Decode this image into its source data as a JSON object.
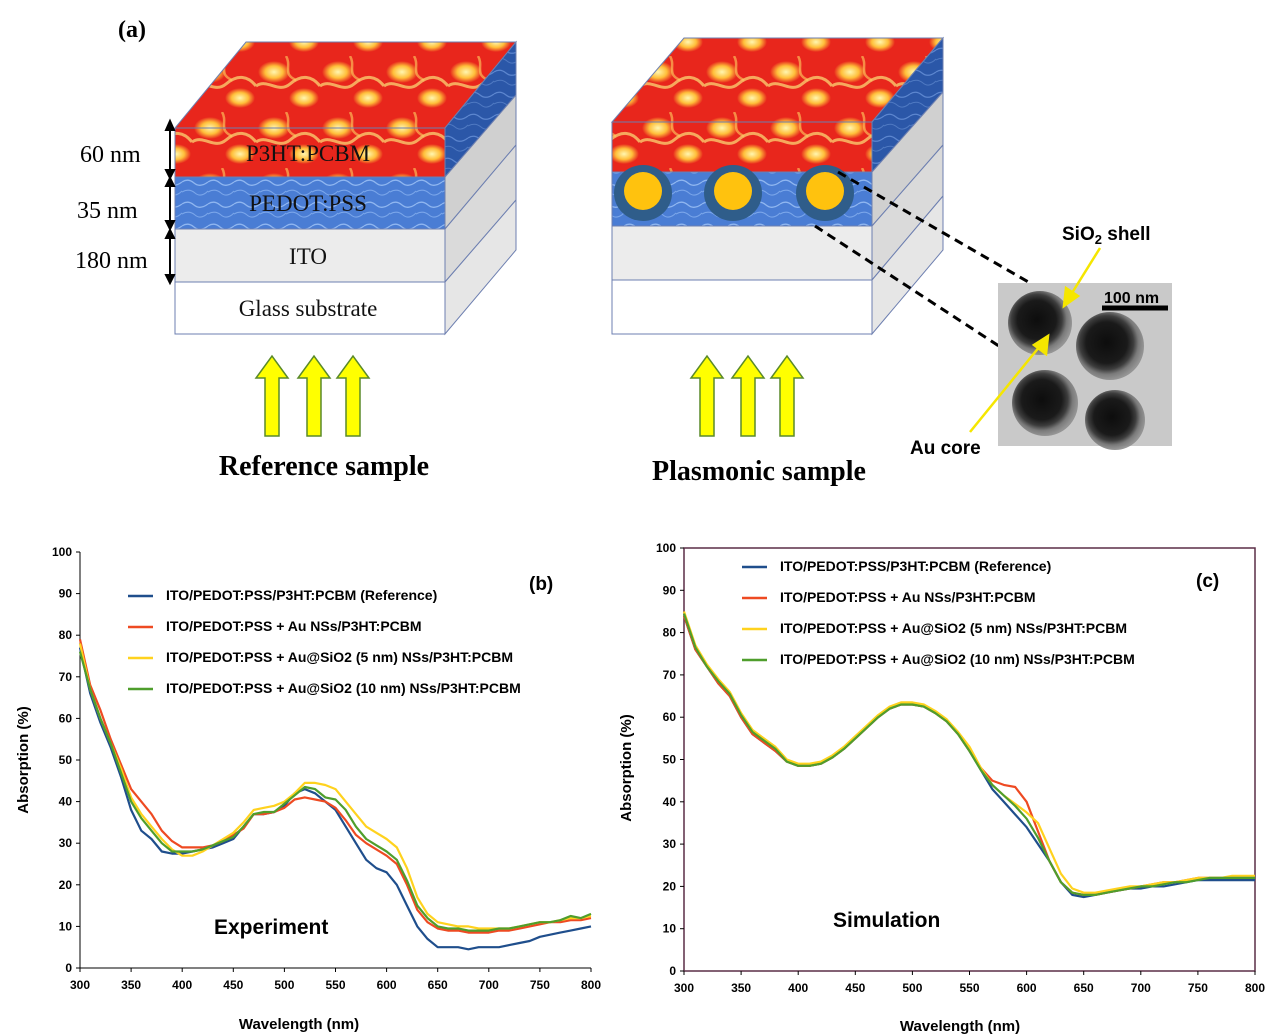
{
  "panel_a": {
    "label": "(a)",
    "dims": [
      "60 nm",
      "35 nm",
      "180 nm"
    ],
    "layers": {
      "active": "P3HT:PCBM",
      "htl": "PEDOT:PSS",
      "ito": "ITO",
      "glass": "Glass substrate"
    },
    "captions": {
      "reference": "Reference sample",
      "plasmonic": "Plasmonic sample"
    },
    "tem": {
      "scale_bar": "100 nm",
      "shell": "SiO",
      "shell_sub": "2",
      "shell_suffix": " shell",
      "core": "Au core"
    },
    "colors": {
      "flame": "#e8201a",
      "flame_light": "#ffe066",
      "pedot": "#4f7fd6",
      "ito": "#ebebeb",
      "arrow": "#ffff00",
      "arrow_edge": "#5a8a2a",
      "nanoparticle_core": "#ffc20e",
      "nanoparticle_shell": "#2f5d8a"
    }
  },
  "chart_data": [
    {
      "panel": "(b)",
      "type": "line",
      "annotation": "Experiment",
      "xlabel": "Wavelength (nm)",
      "ylabel": "Absorption (%)",
      "xlim": [
        300,
        800
      ],
      "ylim": [
        0,
        100
      ],
      "xticks": [
        "300",
        "350",
        "400",
        "450",
        "500",
        "550",
        "600",
        "650",
        "700",
        "750",
        "800"
      ],
      "yticks": [
        "0",
        "10",
        "20",
        "30",
        "40",
        "50",
        "60",
        "70",
        "80",
        "90",
        "100"
      ],
      "grid": false,
      "legend_position": "top",
      "series": [
        {
          "name": "ITO/PEDOT:PSS/P3HT:PCBM (Reference)",
          "color": "#1f4e8c",
          "x": [
            300,
            310,
            320,
            330,
            340,
            350,
            360,
            370,
            380,
            390,
            400,
            410,
            420,
            430,
            440,
            450,
            460,
            470,
            480,
            490,
            500,
            510,
            520,
            530,
            540,
            550,
            560,
            570,
            580,
            590,
            600,
            610,
            620,
            630,
            640,
            650,
            660,
            670,
            680,
            690,
            700,
            710,
            720,
            730,
            740,
            750,
            760,
            770,
            780,
            790,
            800
          ],
          "y": [
            77,
            66,
            59,
            53,
            46,
            38,
            33,
            31,
            28,
            27.5,
            27.5,
            28,
            28.5,
            29,
            30,
            31,
            34,
            37,
            37,
            37.5,
            39,
            42,
            43,
            42,
            40,
            38,
            34,
            30,
            26,
            24,
            23,
            20,
            15,
            10,
            7,
            5,
            5,
            5,
            4.5,
            5,
            5,
            5,
            5.5,
            6,
            6.5,
            7.5,
            8,
            8.5,
            9,
            9.5,
            10
          ]
        },
        {
          "name": "ITO/PEDOT:PSS + Au NSs/P3HT:PCBM",
          "color": "#ee4a22",
          "x": [
            300,
            310,
            320,
            330,
            340,
            350,
            360,
            370,
            380,
            390,
            400,
            410,
            420,
            430,
            440,
            450,
            460,
            470,
            480,
            490,
            500,
            510,
            520,
            530,
            540,
            550,
            560,
            570,
            580,
            590,
            600,
            610,
            620,
            630,
            640,
            650,
            660,
            670,
            680,
            690,
            700,
            710,
            720,
            730,
            740,
            750,
            760,
            770,
            780,
            790,
            800
          ],
          "y": [
            79,
            68,
            62,
            55,
            49,
            43,
            40,
            37,
            33,
            30.5,
            29,
            29,
            29,
            29.5,
            30.5,
            32,
            33.5,
            37,
            37,
            37.5,
            38.5,
            40.5,
            41,
            40.5,
            40,
            38.5,
            35.5,
            32,
            30,
            28.5,
            27,
            25,
            20,
            14,
            11,
            9.5,
            9,
            9,
            8.5,
            8.5,
            8.5,
            9,
            9,
            9.5,
            10,
            10.5,
            11,
            11,
            11.5,
            11.5,
            12
          ]
        },
        {
          "name": "ITO/PEDOT:PSS + Au@SiO2 (5 nm) NSs/P3HT:PCBM",
          "color": "#ffd21e",
          "x": [
            300,
            310,
            320,
            330,
            340,
            350,
            360,
            370,
            380,
            390,
            400,
            410,
            420,
            430,
            440,
            450,
            460,
            470,
            480,
            490,
            500,
            510,
            520,
            530,
            540,
            550,
            560,
            570,
            580,
            590,
            600,
            610,
            620,
            630,
            640,
            650,
            660,
            670,
            680,
            690,
            700,
            710,
            720,
            730,
            740,
            750,
            760,
            770,
            780,
            790,
            800
          ],
          "y": [
            78,
            67,
            60,
            54,
            48,
            41,
            37,
            34,
            31,
            28.5,
            27,
            27,
            28,
            29.5,
            31,
            32.5,
            35,
            38,
            38.5,
            39,
            40,
            42,
            44.5,
            44.5,
            44,
            43,
            40,
            37,
            34,
            32.5,
            31,
            29,
            24,
            17,
            13,
            11,
            10.5,
            10,
            10,
            9.5,
            9.5,
            9.5,
            9.5,
            10,
            10.5,
            11,
            11,
            11.5,
            12,
            12,
            12.5
          ]
        },
        {
          "name": "ITO/PEDOT:PSS + Au@SiO2 (10 nm) NSs/P3HT:PCBM",
          "color": "#4f9e2c",
          "x": [
            300,
            310,
            320,
            330,
            340,
            350,
            360,
            370,
            380,
            390,
            400,
            410,
            420,
            430,
            440,
            450,
            460,
            470,
            480,
            490,
            500,
            510,
            520,
            530,
            540,
            550,
            560,
            570,
            580,
            590,
            600,
            610,
            620,
            630,
            640,
            650,
            660,
            670,
            680,
            690,
            700,
            710,
            720,
            730,
            740,
            750,
            760,
            770,
            780,
            790,
            800
          ],
          "y": [
            76,
            67,
            60,
            54,
            47,
            40,
            36,
            33,
            30,
            28,
            28,
            28,
            28.5,
            29.5,
            30.5,
            31.5,
            34,
            37,
            37.5,
            37.5,
            39.5,
            41.5,
            43.5,
            43,
            41,
            40.5,
            38,
            34,
            31,
            29.5,
            28,
            26,
            21,
            15,
            12,
            10,
            9.5,
            9.5,
            9,
            9,
            9,
            9.5,
            9.5,
            10,
            10.5,
            11,
            11,
            11.5,
            12.5,
            12,
            13
          ]
        }
      ]
    },
    {
      "panel": "(c)",
      "type": "line",
      "annotation": "Simulation",
      "xlabel": "Wavelength (nm)",
      "ylabel": "Absorption (%)",
      "xlim": [
        300,
        800
      ],
      "ylim": [
        0,
        100
      ],
      "xticks": [
        "300",
        "350",
        "400",
        "450",
        "500",
        "550",
        "600",
        "650",
        "700",
        "750",
        "800"
      ],
      "yticks": [
        "0",
        "10",
        "20",
        "30",
        "40",
        "50",
        "60",
        "70",
        "80",
        "90",
        "100"
      ],
      "grid": false,
      "legend_position": "top",
      "series": [
        {
          "name": "ITO/PEDOT:PSS/P3HT:PCBM (Reference)",
          "color": "#1f4e8c",
          "x": [
            300,
            310,
            320,
            330,
            340,
            350,
            360,
            370,
            380,
            390,
            400,
            410,
            420,
            430,
            440,
            450,
            460,
            470,
            480,
            490,
            500,
            510,
            520,
            530,
            540,
            550,
            560,
            570,
            580,
            590,
            600,
            610,
            620,
            630,
            640,
            650,
            660,
            670,
            680,
            690,
            700,
            710,
            720,
            730,
            740,
            750,
            760,
            770,
            780,
            790,
            800
          ],
          "y": [
            84,
            76,
            72,
            68,
            65,
            60,
            56,
            54,
            52,
            49.5,
            48.5,
            48.5,
            49,
            50.5,
            52.5,
            55,
            57.5,
            60,
            62,
            63,
            63,
            62.5,
            61,
            59,
            56,
            52,
            47.5,
            43,
            40,
            37,
            34,
            30,
            26,
            21,
            18,
            17.5,
            18,
            18.5,
            19,
            19.5,
            19.5,
            20,
            20,
            20.5,
            21,
            21.5,
            21.5,
            21.5,
            21.5,
            21.5,
            21.5
          ]
        },
        {
          "name": "ITO/PEDOT:PSS + Au NSs/P3HT:PCBM",
          "color": "#ee4a22",
          "x": [
            300,
            310,
            320,
            330,
            340,
            350,
            360,
            370,
            380,
            390,
            400,
            410,
            420,
            430,
            440,
            450,
            460,
            470,
            480,
            490,
            500,
            510,
            520,
            530,
            540,
            550,
            560,
            570,
            580,
            590,
            600,
            610,
            620,
            630,
            640,
            650,
            660,
            670,
            680,
            690,
            700,
            710,
            720,
            730,
            740,
            750,
            760,
            770,
            780,
            790,
            800
          ],
          "y": [
            84,
            76,
            72,
            68,
            65,
            60,
            56,
            54,
            52,
            49.5,
            48.5,
            48.5,
            49,
            50.5,
            52.5,
            55,
            57.5,
            60,
            62,
            63,
            63,
            62.5,
            61,
            59,
            56,
            52,
            48,
            45,
            44,
            43.5,
            40,
            33,
            26,
            21,
            18.5,
            18,
            18,
            18.5,
            19,
            19.5,
            20,
            20.5,
            21,
            21,
            21.5,
            22,
            22,
            22,
            22,
            22,
            22
          ]
        },
        {
          "name": "ITO/PEDOT:PSS + Au@SiO2 (5 nm) NSs/P3HT:PCBM",
          "color": "#ffd21e",
          "x": [
            300,
            310,
            320,
            330,
            340,
            350,
            360,
            370,
            380,
            390,
            400,
            410,
            420,
            430,
            440,
            450,
            460,
            470,
            480,
            490,
            500,
            510,
            520,
            530,
            540,
            550,
            560,
            570,
            580,
            590,
            600,
            610,
            620,
            630,
            640,
            650,
            660,
            670,
            680,
            690,
            700,
            710,
            720,
            730,
            740,
            750,
            760,
            770,
            780,
            790,
            800
          ],
          "y": [
            85,
            77,
            72.5,
            69,
            66,
            61,
            57,
            55,
            53,
            50,
            49,
            49,
            49.5,
            51,
            53,
            55.5,
            58,
            60.5,
            62.5,
            63.5,
            63.5,
            63,
            61.5,
            59.5,
            56.5,
            53,
            48,
            44,
            41.5,
            39.5,
            37.5,
            35,
            29,
            23,
            19.5,
            18.5,
            18.5,
            19,
            19.5,
            20,
            20,
            20.5,
            21,
            21,
            21.5,
            22,
            22,
            22,
            22.5,
            22.5,
            22.5
          ]
        },
        {
          "name": "ITO/PEDOT:PSS + Au@SiO2 (10 nm) NSs/P3HT:PCBM",
          "color": "#4f9e2c",
          "x": [
            300,
            310,
            320,
            330,
            340,
            350,
            360,
            370,
            380,
            390,
            400,
            410,
            420,
            430,
            440,
            450,
            460,
            470,
            480,
            490,
            500,
            510,
            520,
            530,
            540,
            550,
            560,
            570,
            580,
            590,
            600,
            610,
            620,
            630,
            640,
            650,
            660,
            670,
            680,
            690,
            700,
            710,
            720,
            730,
            740,
            750,
            760,
            770,
            780,
            790,
            800
          ],
          "y": [
            84.5,
            76.5,
            72,
            68.5,
            65.5,
            60.5,
            56.5,
            54.5,
            52.5,
            49.5,
            48.5,
            48.5,
            49,
            50.5,
            52.5,
            55,
            57.5,
            60,
            62,
            63,
            63,
            62.5,
            61,
            59,
            56,
            52,
            47.5,
            44,
            41.5,
            39,
            36,
            31.5,
            26,
            21,
            18.5,
            18,
            18,
            18.5,
            19,
            19.5,
            20,
            20,
            20.5,
            21,
            21,
            21.5,
            22,
            22,
            22,
            22,
            22
          ]
        }
      ]
    }
  ]
}
